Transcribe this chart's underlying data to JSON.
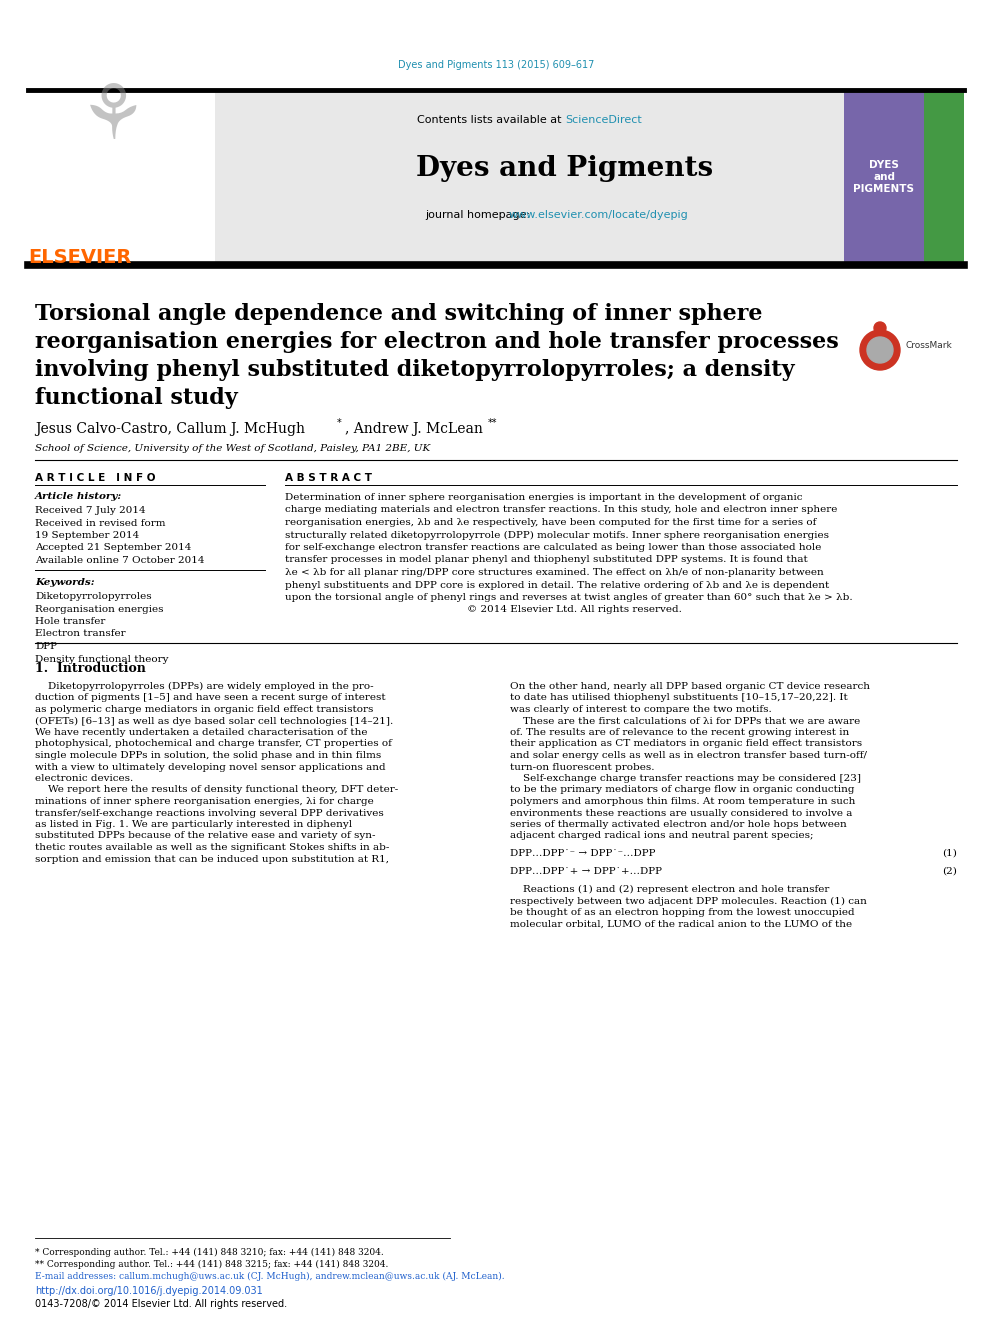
{
  "page_bg": "#ffffff",
  "top_journal_ref": "Dyes and Pigments 113 (2015) 609–617",
  "top_journal_ref_color": "#2090b0",
  "header_bg": "#e8e8e8",
  "elsevier_text": "ELSEVIER",
  "elsevier_color": "#ff6600",
  "sciencedirect_text": "ScienceDirect",
  "sciencedirect_color": "#2090b0",
  "journal_title": "Dyes and Pigments",
  "journal_homepage_prefix": "journal homepage: ",
  "journal_homepage_url": "www.elsevier.com/locate/dyepig",
  "journal_homepage_url_color": "#2090b0",
  "cover_bg": "#7766aa",
  "cover_text": "DYES\nand\nPIGMENTS",
  "article_title_lines": [
    "Torsional angle dependence and switching of inner sphere",
    "reorganisation energies for electron and hole transfer processes",
    "involving phenyl substituted diketopyrrolopyrroles; a density",
    "functional study"
  ],
  "authors_line": "Jesus Calvo-Castro, Callum J. McHugh*, Andrew J. McLean**",
  "affiliation": "School of Science, University of the West of Scotland, Paisley, PA1 2BE, UK",
  "article_info_title": "A R T I C L E   I N F O",
  "article_history_label": "Article history:",
  "article_history": [
    "Received 7 July 2014",
    "Received in revised form",
    "19 September 2014",
    "Accepted 21 September 2014",
    "Available online 7 October 2014"
  ],
  "keywords_label": "Keywords:",
  "keywords": [
    "Diketopyrrolopyrroles",
    "Reorganisation energies",
    "Hole transfer",
    "Electron transfer",
    "DPP",
    "Density functional theory"
  ],
  "abstract_title": "A B S T R A C T",
  "abstract_lines": [
    "Determination of inner sphere reorganisation energies is important in the development of organic",
    "charge mediating materials and electron transfer reactions. In this study, hole and electron inner sphere",
    "reorganisation energies, λb and λe respectively, have been computed for the first time for a series of",
    "structurally related diketopyrrolopyrrole (DPP) molecular motifs. Inner sphere reorganisation energies",
    "for self-exchange electron transfer reactions are calculated as being lower than those associated hole",
    "transfer processes in model planar phenyl and thiophenyl substituted DPP systems. It is found that",
    "λe < λb for all planar ring/DPP core structures examined. The effect on λh/e of non-planarity between",
    "phenyl substituents and DPP core is explored in detail. The relative ordering of λb and λe is dependent",
    "upon the torsional angle of phenyl rings and reverses at twist angles of greater than 60° such that λe > λb.",
    "                                                        © 2014 Elsevier Ltd. All rights reserved."
  ],
  "intro_title": "1.  Introduction",
  "body_col1": [
    "    Diketopyrrolopyrroles (DPPs) are widely employed in the pro-",
    "duction of pigments [1–5] and have seen a recent surge of interest",
    "as polymeric charge mediators in organic field effect transistors",
    "(OFETs) [6–13] as well as dye based solar cell technologies [14–21].",
    "We have recently undertaken a detailed characterisation of the",
    "photophysical, photochemical and charge transfer, CT properties of",
    "single molecule DPPs in solution, the solid phase and in thin films",
    "with a view to ultimately developing novel sensor applications and",
    "electronic devices.",
    "    We report here the results of density functional theory, DFT deter-",
    "minations of inner sphere reorganisation energies, λi for charge",
    "transfer/self-exchange reactions involving several DPP derivatives",
    "as listed in Fig. 1. We are particularly interested in diphenyl",
    "substituted DPPs because of the relative ease and variety of syn-",
    "thetic routes available as well as the significant Stokes shifts in ab-",
    "sorption and emission that can be induced upon substitution at R1,"
  ],
  "body_col2_before_reactions": [
    "On the other hand, nearly all DPP based organic CT device research",
    "to date has utilised thiophenyl substituents [10–15,17–20,22]. It",
    "was clearly of interest to compare the two motifs.",
    "    These are the first calculations of λi for DPPs that we are aware",
    "of. The results are of relevance to the recent growing interest in",
    "their application as CT mediators in organic field effect transistors",
    "and solar energy cells as well as in electron transfer based turn-off/",
    "turn-on fluorescent probes.",
    "    Self-exchange charge transfer reactions may be considered [23]",
    "to be the primary mediators of charge flow in organic conducting",
    "polymers and amorphous thin films. At room temperature in such",
    "environments these reactions are usually considered to involve a",
    "series of thermally activated electron and/or hole hops between",
    "adjacent charged radical ions and neutral parent species;"
  ],
  "reaction1": "DPP…DPP˙⁻ → DPP˙⁻…DPP",
  "reaction1_num": "(1)",
  "reaction2": "DPP…DPP˙+ → DPP˙+…DPP",
  "reaction2_num": "(2)",
  "body_col2_after_reactions": [
    "    Reactions (1) and (2) represent electron and hole transfer",
    "respectively between two adjacent DPP molecules. Reaction (1) can",
    "be thought of as an electron hopping from the lowest unoccupied",
    "molecular orbital, LUMO of the radical anion to the LUMO of the"
  ],
  "footer_line1": "* Corresponding author. Tel.: +44 (141) 848 3210; fax: +44 (141) 848 3204.",
  "footer_line2": "** Corresponding author. Tel.: +44 (141) 848 3215; fax: +44 (141) 848 3204.",
  "footer_email": "E-mail addresses: callum.mchugh@uws.ac.uk (CJ. McHugh), andrew.mclean@uws.ac.uk (AJ. McLean).",
  "footer_doi": "http://dx.doi.org/10.1016/j.dyepig.2014.09.031",
  "footer_issn": "0143-7208/© 2014 Elsevier Ltd. All rights reserved.",
  "link_color": "#2060cc",
  "text_color": "#000000"
}
